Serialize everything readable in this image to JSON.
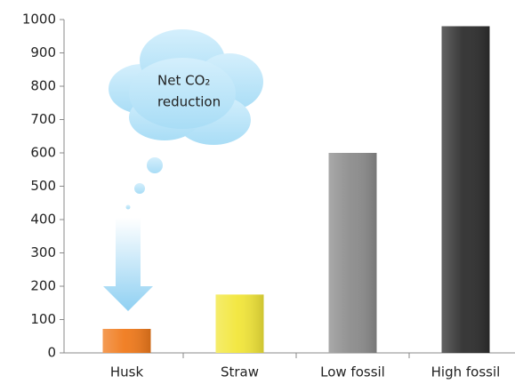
{
  "chart_data": {
    "type": "bar",
    "categories": [
      "Husk",
      "Straw",
      "Low fossil",
      "High fossil"
    ],
    "values": [
      72,
      175,
      600,
      980
    ],
    "colors": [
      "#f07a1c",
      "#f2e63a",
      "#8c8c8c",
      "#2e2e2e"
    ],
    "ylim": [
      0,
      1000
    ],
    "yticks": [
      0,
      100,
      200,
      300,
      400,
      500,
      600,
      700,
      800,
      900,
      1000
    ],
    "annotation": [
      "Net CO₂",
      "reduction"
    ]
  }
}
